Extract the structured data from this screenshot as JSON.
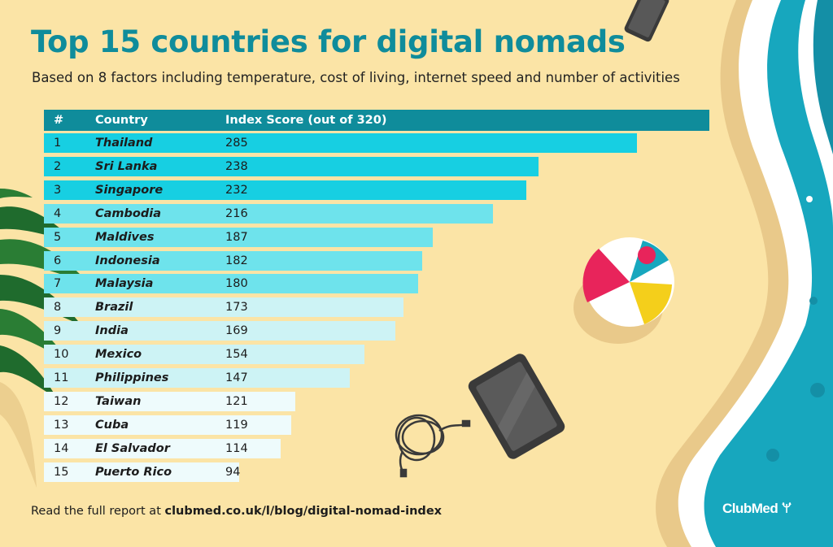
{
  "title": "Top 15 countries for digital nomads",
  "subtitle": "Based on 8 factors including temperature, cost of living, internet speed and number of activities",
  "footer": {
    "prefix": "Read the full report at ",
    "link": "clubmed.co.uk/l/blog/digital-nomad-index"
  },
  "logo": "ClubMed",
  "colors": {
    "header": "#0f8c9b",
    "tier1": "#17cfe2",
    "tier2": "#6ee3ec",
    "tier3": "#cdf3f5",
    "tier4": "#eefbfc",
    "sand": "#fbe4a6",
    "sea": "#17a7be"
  },
  "icons": [
    "phone-icon",
    "tablet-icon",
    "cable-icon",
    "beach-ball-icon",
    "palm-leaf-icon",
    "trident-icon"
  ],
  "chart_data": {
    "type": "table",
    "columns": [
      "#",
      "Country",
      "Index Score (out of 320)"
    ],
    "max": 320,
    "rows": [
      {
        "rank": "1",
        "country": "Thailand",
        "score": 285
      },
      {
        "rank": "2",
        "country": "Sri Lanka",
        "score": 238
      },
      {
        "rank": "3",
        "country": "Singapore",
        "score": 232
      },
      {
        "rank": "4",
        "country": "Cambodia",
        "score": 216
      },
      {
        "rank": "5",
        "country": "Maldives",
        "score": 187
      },
      {
        "rank": "6",
        "country": "Indonesia",
        "score": 182
      },
      {
        "rank": "7",
        "country": "Malaysia",
        "score": 180
      },
      {
        "rank": "8",
        "country": "Brazil",
        "score": 173
      },
      {
        "rank": "9",
        "country": "India",
        "score": 169
      },
      {
        "rank": "10",
        "country": "Mexico",
        "score": 154
      },
      {
        "rank": "11",
        "country": "Philippines",
        "score": 147
      },
      {
        "rank": "12",
        "country": "Taiwan",
        "score": 121
      },
      {
        "rank": "13",
        "country": "Cuba",
        "score": 119
      },
      {
        "rank": "14",
        "country": "El Salvador",
        "score": 114
      },
      {
        "rank": "15",
        "country": "Puerto Rico",
        "score": 94
      }
    ]
  }
}
